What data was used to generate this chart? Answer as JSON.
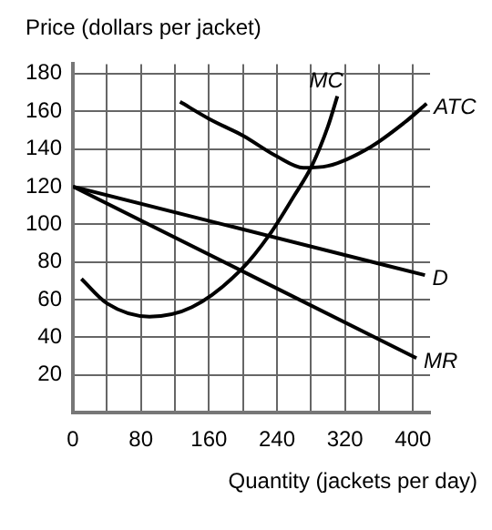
{
  "chart_data": {
    "type": "line",
    "xlabel": "Quantity (jackets per day)",
    "ylabel": "Price (dollars per jacket)",
    "xlim": [
      0,
      420
    ],
    "ylim": [
      0,
      185
    ],
    "xticks": [
      0,
      {
        "value": 40,
        "label": null
      },
      80,
      {
        "value": 120,
        "label": null
      },
      160,
      {
        "value": 200,
        "label": null
      },
      240,
      {
        "value": 280,
        "label": null
      },
      320,
      {
        "value": 360,
        "label": null
      },
      400
    ],
    "yticks": [
      20,
      40,
      60,
      80,
      100,
      120,
      140,
      160,
      180
    ],
    "grid": true,
    "line_style": "solid",
    "marker": "none",
    "series": [
      {
        "name": "MC",
        "color": "#000000",
        "x": [
          10,
          40,
          90,
          140,
          198,
          232,
          260,
          281,
          300,
          311
        ],
        "values": [
          71,
          58,
          51,
          56,
          76,
          95,
          115,
          131,
          152,
          168
        ]
      },
      {
        "name": "ATC",
        "color": "#000000",
        "x": [
          126,
          160,
          200,
          240,
          271,
          300,
          350,
          390,
          416
        ],
        "values": [
          165,
          156,
          147,
          136,
          130,
          131,
          141,
          154,
          164
        ]
      },
      {
        "name": "D",
        "color": "#000000",
        "x": [
          0,
          414
        ],
        "values": [
          120,
          73
        ]
      },
      {
        "name": "MR",
        "color": "#000000",
        "x": [
          0,
          404
        ],
        "values": [
          120,
          29
        ]
      }
    ]
  }
}
